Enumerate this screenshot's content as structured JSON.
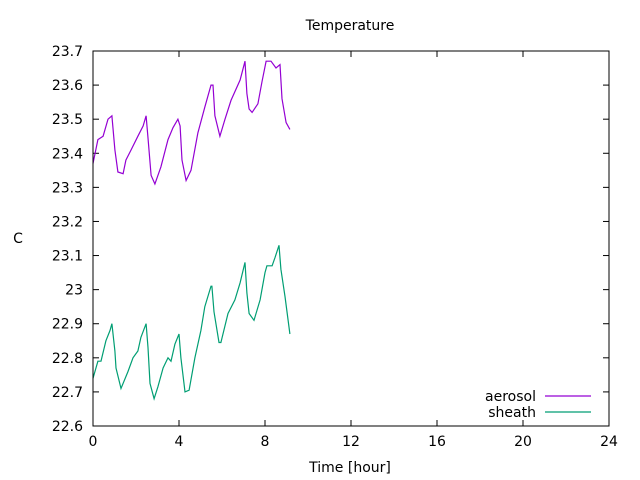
{
  "chart_data": {
    "type": "line",
    "title": "Temperature",
    "xlabel": "Time [hour]",
    "ylabel": "C",
    "xlim": [
      0,
      24
    ],
    "ylim": [
      22.6,
      23.7
    ],
    "xticks": [
      "0",
      "4",
      "8",
      "12",
      "16",
      "20",
      "24"
    ],
    "yticks": [
      "22.6",
      "22.7",
      "22.8",
      "22.9",
      "23",
      "23.1",
      "23.2",
      "23.3",
      "23.4",
      "23.5",
      "23.6",
      "23.7"
    ],
    "grid": false,
    "legend_position": "bottom-right",
    "series": [
      {
        "name": "aerosol",
        "color": "#9400d3",
        "x": [
          0,
          0.23,
          0.47,
          0.7,
          0.88,
          1.02,
          1.16,
          1.4,
          1.53,
          1.77,
          2.09,
          2.33,
          2.47,
          2.56,
          2.7,
          2.88,
          3.16,
          3.49,
          3.72,
          3.95,
          4.05,
          4.14,
          4.33,
          4.56,
          4.88,
          5.2,
          5.49,
          5.58,
          5.67,
          5.9,
          6.14,
          6.42,
          6.84,
          7.07,
          7.16,
          7.26,
          7.4,
          7.67,
          7.86,
          8.05,
          8.28,
          8.51,
          8.7,
          8.79,
          8.98,
          9.16
        ],
        "y": [
          23.37,
          23.44,
          23.45,
          23.5,
          23.51,
          23.41,
          23.345,
          23.34,
          23.38,
          23.41,
          23.45,
          23.48,
          23.51,
          23.445,
          23.335,
          23.31,
          23.36,
          23.44,
          23.475,
          23.5,
          23.48,
          23.38,
          23.32,
          23.35,
          23.46,
          23.535,
          23.6,
          23.6,
          23.51,
          23.45,
          23.5,
          23.555,
          23.615,
          23.67,
          23.575,
          23.53,
          23.52,
          23.545,
          23.61,
          23.67,
          23.67,
          23.65,
          23.66,
          23.56,
          23.49,
          23.47
        ]
      },
      {
        "name": "sheath",
        "color": "#009e73",
        "x": [
          0,
          0.23,
          0.37,
          0.6,
          0.79,
          0.88,
          1.02,
          1.07,
          1.3,
          1.63,
          1.86,
          2.09,
          2.23,
          2.47,
          2.56,
          2.65,
          2.84,
          3.02,
          3.26,
          3.49,
          3.63,
          3.81,
          4.0,
          4.09,
          4.28,
          4.47,
          4.74,
          5.02,
          5.2,
          5.49,
          5.53,
          5.63,
          5.86,
          5.95,
          6.28,
          6.6,
          6.84,
          7.07,
          7.16,
          7.26,
          7.49,
          7.77,
          8.0,
          8.09,
          8.33,
          8.47,
          8.65,
          8.74,
          8.93,
          9.16
        ],
        "y": [
          22.74,
          22.79,
          22.79,
          22.85,
          22.88,
          22.9,
          22.82,
          22.77,
          22.71,
          22.76,
          22.8,
          22.82,
          22.86,
          22.9,
          22.83,
          22.725,
          22.68,
          22.715,
          22.77,
          22.8,
          22.79,
          22.84,
          22.87,
          22.8,
          22.7,
          22.705,
          22.8,
          22.88,
          22.95,
          23.01,
          23.01,
          22.935,
          22.845,
          22.845,
          22.93,
          22.97,
          23.02,
          23.08,
          22.99,
          22.93,
          22.91,
          22.97,
          23.05,
          23.07,
          23.07,
          23.095,
          23.13,
          23.06,
          22.98,
          22.87
        ]
      }
    ]
  }
}
